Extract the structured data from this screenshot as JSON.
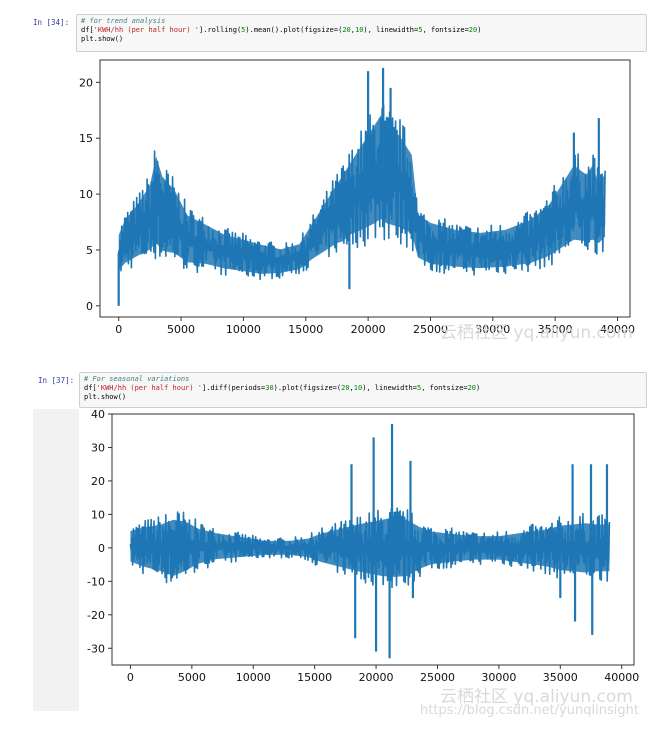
{
  "cells": [
    {
      "prompt": "In [34]:",
      "comment": "# for trend analysis",
      "line2": {
        "a": "df[",
        "s": "'KWH/hh (per half hour) '",
        "b": "].rolling(",
        "n1": "5",
        "c": ").mean().plot(figsize=(",
        "n2": "20",
        "d": ",",
        "n3": "10",
        "e": "), linewidth=",
        "n4": "5",
        "f": ", fontsize=",
        "n5": "20",
        "g": ")"
      },
      "line3": "plt.show()"
    },
    {
      "prompt": "In [37]:",
      "comment": "# For seasonal variations",
      "line2": {
        "a": "df[",
        "s": "'KWH/hh (per half hour) '",
        "b": "].diff(periods=",
        "n1": "30",
        "c": ").plot(figsize=(",
        "n2": "20",
        "d": ",",
        "n3": "10",
        "e": "), linewidth=",
        "n4": "5",
        "f": ", fontsize=",
        "n5": "20",
        "g": ")"
      },
      "line3": "plt.show()"
    }
  ],
  "chart_data": [
    {
      "type": "line",
      "title": "",
      "xlabel": "",
      "ylabel": "",
      "color": "#1f77b4",
      "xlim": [
        -1500,
        41000
      ],
      "ylim": [
        -1,
        22
      ],
      "xticks": [
        0,
        5000,
        10000,
        15000,
        20000,
        25000,
        30000,
        35000,
        40000
      ],
      "yticks": [
        0,
        5,
        10,
        15,
        20
      ],
      "envelope": {
        "x": [
          0,
          500,
          1500,
          2500,
          3000,
          3500,
          4500,
          5500,
          7000,
          8500,
          10000,
          11500,
          13000,
          14500,
          15500,
          16500,
          17500,
          18000,
          18500,
          19500,
          20500,
          21000,
          21500,
          22500,
          23500,
          24000,
          25000,
          27000,
          29000,
          31000,
          33000,
          34500,
          35500,
          36500,
          37500,
          38000,
          38500,
          39000
        ],
        "upper": [
          7,
          8.5,
          10,
          12,
          15,
          13,
          11.5,
          9,
          8,
          7,
          6.5,
          6,
          5.5,
          6,
          8,
          10,
          12,
          13,
          14,
          16,
          18,
          19,
          18,
          17,
          15,
          9,
          8.2,
          7.5,
          7.2,
          7.5,
          8.5,
          10,
          12,
          14,
          13,
          14,
          12,
          13
        ],
        "lower": [
          2.5,
          3,
          3.5,
          3.8,
          4,
          3.5,
          3.5,
          3,
          3,
          2.7,
          2.5,
          2.3,
          2.5,
          2.8,
          3.5,
          4,
          4.5,
          4.5,
          5,
          5.2,
          5.5,
          5.8,
          5.5,
          5.3,
          5,
          3.5,
          3,
          2.8,
          2.7,
          2.8,
          3,
          3.5,
          4,
          4.5,
          4.5,
          4.5,
          4.5,
          5
        ]
      },
      "spikes": [
        {
          "x": 0,
          "y": 0
        },
        {
          "x": 18500,
          "y": 1.5
        },
        {
          "x": 20000,
          "y": 21
        },
        {
          "x": 21200,
          "y": 21.3
        },
        {
          "x": 21800,
          "y": 19.5
        },
        {
          "x": 36500,
          "y": 15.5
        },
        {
          "x": 38500,
          "y": 16.8
        }
      ]
    },
    {
      "type": "line",
      "title": "",
      "xlabel": "",
      "ylabel": "",
      "color": "#1f77b4",
      "xlim": [
        -1500,
        41000
      ],
      "ylim": [
        -35,
        40
      ],
      "xticks": [
        0,
        5000,
        10000,
        15000,
        20000,
        25000,
        30000,
        35000,
        40000
      ],
      "yticks": [
        -30,
        -20,
        -10,
        0,
        10,
        20,
        30,
        40
      ],
      "envelope": {
        "x": [
          0,
          1000,
          2500,
          3500,
          4500,
          5500,
          7000,
          9000,
          11000,
          13000,
          14500,
          15500,
          17000,
          18500,
          19500,
          20500,
          21500,
          22500,
          23500,
          24500,
          26000,
          28000,
          30000,
          32000,
          34000,
          35000,
          36000,
          37000,
          38000,
          39000
        ],
        "upper": [
          7,
          8.5,
          10,
          12,
          11,
          8,
          6,
          4.5,
          3,
          3,
          4,
          6,
          8,
          10,
          11,
          12,
          13,
          12,
          9,
          7,
          6,
          5,
          5,
          6.5,
          8,
          9.5,
          10,
          10.5,
          10,
          10
        ],
        "lower": [
          -6,
          -8,
          -10,
          -12,
          -10,
          -7,
          -5,
          -4,
          -3,
          -3,
          -4,
          -6,
          -8,
          -10,
          -11,
          -12,
          -12.5,
          -12,
          -9,
          -7,
          -6,
          -5,
          -5,
          -6.5,
          -8,
          -9.5,
          -10,
          -10.5,
          -10,
          -10
        ]
      },
      "spikes": [
        {
          "x": 18000,
          "y": 25
        },
        {
          "x": 18300,
          "y": -27
        },
        {
          "x": 19800,
          "y": 33
        },
        {
          "x": 20000,
          "y": -31
        },
        {
          "x": 21300,
          "y": 37
        },
        {
          "x": 21100,
          "y": -33
        },
        {
          "x": 22800,
          "y": 26
        },
        {
          "x": 23000,
          "y": -15
        },
        {
          "x": 35000,
          "y": -15
        },
        {
          "x": 36000,
          "y": 25
        },
        {
          "x": 36200,
          "y": -22
        },
        {
          "x": 37500,
          "y": 25
        },
        {
          "x": 37600,
          "y": -26
        },
        {
          "x": 38800,
          "y": 25
        }
      ]
    }
  ],
  "watermarks": {
    "top": "云栖社区 yq.aliyun.com",
    "bottom1": "云栖社区 yq.aliyun.com",
    "bottom2": "https://blog.csdn.net/yunqlinsight"
  }
}
